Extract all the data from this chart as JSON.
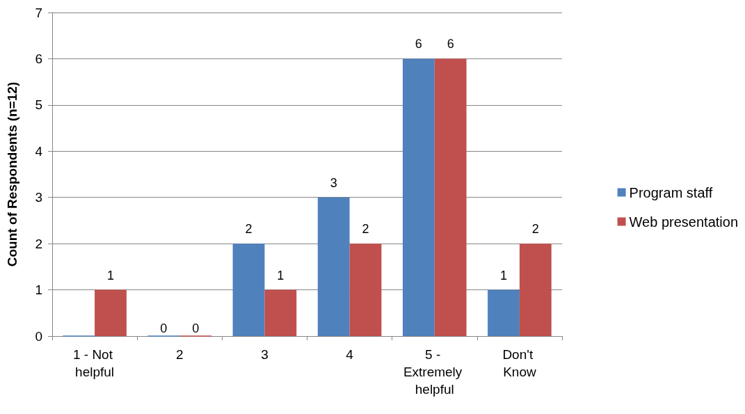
{
  "chart_data": {
    "type": "bar",
    "ylabel": "Count of Respondents (n=12)",
    "categories": [
      "1 - Not helpful",
      "2",
      "3",
      "4",
      "5 - Extremely helpful",
      "Don't Know"
    ],
    "series": [
      {
        "name": "Program staff",
        "color": "#4f81bd",
        "values": [
          0,
          0,
          2,
          3,
          6,
          1
        ],
        "value_labels": [
          null,
          "0",
          "2",
          "3",
          "6",
          "1"
        ]
      },
      {
        "name": "Web presentation",
        "color": "#c0504d",
        "values": [
          1,
          0,
          1,
          2,
          6,
          2
        ],
        "value_labels": [
          "1",
          "0",
          "1",
          "2",
          "6",
          "2"
        ]
      }
    ],
    "ylim": [
      0,
      7
    ],
    "yticks": [
      0,
      1,
      2,
      3,
      4,
      5,
      6,
      7
    ],
    "grid": "y",
    "legend": "right"
  }
}
